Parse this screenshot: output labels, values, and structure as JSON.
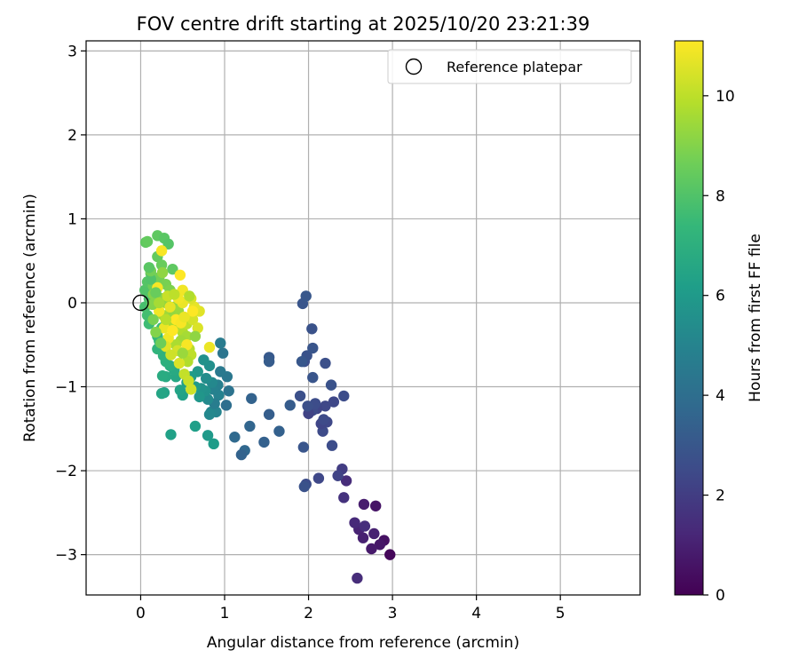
{
  "chart_data": {
    "type": "scatter",
    "title": "FOV centre drift starting at 2025/10/20 23:21:39",
    "xlabel": "Angular distance from reference (arcmin)",
    "ylabel": "Rotation from reference (arcmin)",
    "xlim": [
      -0.65,
      5.95
    ],
    "ylim": [
      -3.48,
      3.12
    ],
    "xticks": [
      0,
      1,
      2,
      3,
      4,
      5
    ],
    "xtick_labels": [
      "0",
      "1",
      "2",
      "3",
      "4",
      "5"
    ],
    "yticks": [
      3,
      2,
      1,
      0,
      -1,
      -2,
      -3
    ],
    "ytick_labels": [
      "3",
      "2",
      "1",
      "0",
      "−1",
      "−2",
      "−3"
    ],
    "grid": true,
    "legend": {
      "position": "top-right",
      "label": "Reference platepar"
    },
    "reference_point": {
      "x": 0,
      "y": 0,
      "marker": "open-circle"
    },
    "colorbar": {
      "label": "Hours from first FF file",
      "range": [
        0,
        11.1
      ],
      "ticks": [
        0,
        2,
        4,
        6,
        8,
        10
      ],
      "tick_labels": [
        "0",
        "2",
        "4",
        "6",
        "8",
        "10"
      ],
      "colormap": "viridis",
      "colors": [
        "#440154",
        "#482878",
        "#3e4a89",
        "#31688e",
        "#26828e",
        "#1f9e89",
        "#35b779",
        "#6ece58",
        "#b5de2b",
        "#fde725"
      ]
    },
    "series": [
      {
        "name": "FOV centre",
        "columns": [
          "x",
          "y",
          "hours"
        ],
        "points": [
          [
            2.97,
            -3.0,
            0.2
          ],
          [
            2.9,
            -2.83,
            0.5
          ],
          [
            2.85,
            -2.88,
            0.7
          ],
          [
            2.75,
            -2.93,
            0.8
          ],
          [
            2.8,
            -2.42,
            0.6
          ],
          [
            2.66,
            -2.4,
            0.9
          ],
          [
            2.78,
            -2.75,
            1.0
          ],
          [
            2.6,
            -2.7,
            1.1
          ],
          [
            2.65,
            -2.8,
            1.0
          ],
          [
            2.55,
            -2.62,
            1.3
          ],
          [
            2.58,
            -3.28,
            1.4
          ],
          [
            2.67,
            -2.66,
            1.5
          ],
          [
            2.45,
            -2.12,
            1.4
          ],
          [
            2.42,
            -2.32,
            1.6
          ],
          [
            2.4,
            -1.98,
            2.0
          ],
          [
            2.35,
            -2.06,
            2.2
          ],
          [
            2.12,
            -2.09,
            2.4
          ],
          [
            1.97,
            -2.16,
            2.6
          ],
          [
            1.95,
            -2.19,
            2.8
          ],
          [
            1.94,
            -1.72,
            2.9
          ],
          [
            2.28,
            -1.7,
            2.6
          ],
          [
            2.17,
            -1.53,
            2.5
          ],
          [
            2.22,
            -1.42,
            2.4
          ],
          [
            2.15,
            -1.44,
            2.3
          ],
          [
            2.18,
            -1.39,
            2.5
          ],
          [
            2.2,
            -1.23,
            2.4
          ],
          [
            2.1,
            -1.26,
            2.3
          ],
          [
            2.05,
            -1.28,
            2.5
          ],
          [
            2.0,
            -1.32,
            2.2
          ],
          [
            2.08,
            -1.2,
            2.6
          ],
          [
            1.99,
            -1.23,
            2.7
          ],
          [
            2.3,
            -1.18,
            2.4
          ],
          [
            2.42,
            -1.11,
            2.6
          ],
          [
            1.9,
            -1.11,
            2.7
          ],
          [
            2.27,
            -0.98,
            2.8
          ],
          [
            2.05,
            -0.89,
            2.9
          ],
          [
            2.2,
            -0.72,
            2.7
          ],
          [
            1.95,
            -0.7,
            2.6
          ],
          [
            1.98,
            -0.63,
            2.8
          ],
          [
            1.92,
            -0.7,
            3.0
          ],
          [
            2.05,
            -0.54,
            2.9
          ],
          [
            2.04,
            -0.31,
            2.8
          ],
          [
            1.93,
            -0.01,
            2.9
          ],
          [
            1.97,
            0.08,
            3.0
          ],
          [
            1.53,
            -0.65,
            3.1
          ],
          [
            1.53,
            -0.7,
            3.2
          ],
          [
            1.53,
            -1.33,
            3.3
          ],
          [
            1.65,
            -1.53,
            3.4
          ],
          [
            1.78,
            -1.22,
            3.2
          ],
          [
            1.32,
            -1.14,
            3.5
          ],
          [
            1.3,
            -1.47,
            3.6
          ],
          [
            1.47,
            -1.66,
            3.4
          ],
          [
            1.24,
            -1.76,
            3.7
          ],
          [
            1.2,
            -1.81,
            3.5
          ],
          [
            1.12,
            -1.6,
            3.8
          ],
          [
            1.02,
            -1.22,
            4.0
          ],
          [
            1.05,
            -1.05,
            4.2
          ],
          [
            1.03,
            -0.88,
            4.4
          ],
          [
            0.95,
            -0.82,
            4.5
          ],
          [
            0.98,
            -0.6,
            4.3
          ],
          [
            0.95,
            -0.48,
            4.6
          ],
          [
            0.92,
            -0.98,
            4.8
          ],
          [
            0.93,
            -1.1,
            4.9
          ],
          [
            0.9,
            -1.3,
            5.0
          ],
          [
            0.84,
            -1.3,
            5.1
          ],
          [
            0.82,
            -1.33,
            5.2
          ],
          [
            0.88,
            -1.2,
            4.7
          ],
          [
            0.86,
            -1.03,
            4.9
          ],
          [
            0.8,
            -1.15,
            5.3
          ],
          [
            0.85,
            -0.95,
            5.2
          ],
          [
            0.78,
            -0.9,
            5.4
          ],
          [
            0.82,
            -0.75,
            5.5
          ],
          [
            0.77,
            -1.05,
            5.6
          ],
          [
            0.72,
            -1.02,
            5.7
          ],
          [
            0.7,
            -1.12,
            5.8
          ],
          [
            0.75,
            -0.68,
            5.6
          ],
          [
            0.68,
            -0.82,
            5.9
          ],
          [
            0.65,
            -1.0,
            6.0
          ],
          [
            0.6,
            -0.88,
            6.1
          ],
          [
            0.55,
            -0.95,
            6.2
          ],
          [
            0.5,
            -1.1,
            6.3
          ],
          [
            0.47,
            -1.04,
            6.4
          ],
          [
            0.8,
            -1.58,
            6.0
          ],
          [
            0.87,
            -1.68,
            6.1
          ],
          [
            0.65,
            -1.47,
            6.2
          ],
          [
            0.36,
            -1.57,
            6.3
          ],
          [
            0.28,
            -1.07,
            6.4
          ],
          [
            0.25,
            -1.08,
            6.5
          ],
          [
            0.42,
            -0.88,
            6.6
          ],
          [
            0.3,
            -0.88,
            6.7
          ],
          [
            0.26,
            -0.87,
            6.8
          ],
          [
            0.4,
            -0.8,
            6.7
          ],
          [
            0.35,
            -0.75,
            6.9
          ],
          [
            0.3,
            -0.7,
            7.0
          ],
          [
            0.27,
            -0.63,
            7.1
          ],
          [
            0.2,
            -0.55,
            7.2
          ],
          [
            0.22,
            -0.45,
            7.3
          ],
          [
            0.2,
            -0.4,
            7.4
          ],
          [
            0.25,
            -0.3,
            7.5
          ],
          [
            0.1,
            -0.25,
            7.6
          ],
          [
            0.08,
            -0.15,
            7.7
          ],
          [
            0.05,
            -0.05,
            7.8
          ],
          [
            0.1,
            0.05,
            7.9
          ],
          [
            0.05,
            0.15,
            8.0
          ],
          [
            0.08,
            0.25,
            8.1
          ],
          [
            0.12,
            0.35,
            8.2
          ],
          [
            0.06,
            0.72,
            8.3
          ],
          [
            0.08,
            0.73,
            8.4
          ],
          [
            0.2,
            0.8,
            8.3
          ],
          [
            0.28,
            0.77,
            8.2
          ],
          [
            0.33,
            0.7,
            8.1
          ],
          [
            0.2,
            0.55,
            8.4
          ],
          [
            0.25,
            0.45,
            8.5
          ],
          [
            0.38,
            0.4,
            8.3
          ],
          [
            0.15,
            0.2,
            8.6
          ],
          [
            0.22,
            0.3,
            8.7
          ],
          [
            0.3,
            0.22,
            8.8
          ],
          [
            0.35,
            0.15,
            8.9
          ],
          [
            0.15,
            0.1,
            9.0
          ],
          [
            0.25,
            0.05,
            9.1
          ],
          [
            0.3,
            0.0,
            9.2
          ],
          [
            0.4,
            -0.05,
            9.3
          ],
          [
            0.45,
            -0.1,
            9.4
          ],
          [
            0.35,
            -0.12,
            9.3
          ],
          [
            0.27,
            -0.15,
            9.5
          ],
          [
            0.32,
            -0.25,
            9.6
          ],
          [
            0.4,
            -0.3,
            9.7
          ],
          [
            0.5,
            -0.35,
            9.8
          ],
          [
            0.55,
            -0.4,
            9.6
          ],
          [
            0.48,
            -0.45,
            9.5
          ],
          [
            0.42,
            -0.5,
            9.7
          ],
          [
            0.58,
            -0.55,
            9.9
          ],
          [
            0.6,
            -0.62,
            10.0
          ],
          [
            0.56,
            -0.7,
            9.8
          ],
          [
            0.52,
            -0.85,
            10.1
          ],
          [
            0.57,
            -0.93,
            10.2
          ],
          [
            0.6,
            -1.03,
            10.3
          ],
          [
            0.55,
            -0.25,
            10.0
          ],
          [
            0.62,
            -0.2,
            10.4
          ],
          [
            0.68,
            -0.3,
            10.5
          ],
          [
            0.7,
            -0.1,
            10.6
          ],
          [
            0.64,
            -0.05,
            10.7
          ],
          [
            0.6,
            0.05,
            10.5
          ],
          [
            0.5,
            0.0,
            10.8
          ],
          [
            0.45,
            0.05,
            10.9
          ],
          [
            0.35,
            -0.05,
            10.7
          ],
          [
            0.28,
            -0.3,
            10.8
          ],
          [
            0.22,
            -0.1,
            10.9
          ],
          [
            0.2,
            0.18,
            11.0
          ],
          [
            0.25,
            0.62,
            11.0
          ],
          [
            0.47,
            0.33,
            11.1
          ],
          [
            0.5,
            0.15,
            10.9
          ],
          [
            0.42,
            -0.2,
            11.1
          ],
          [
            0.55,
            -0.5,
            11.0
          ],
          [
            0.62,
            -0.1,
            11.1
          ],
          [
            0.33,
            -0.42,
            10.9
          ],
          [
            0.38,
            -0.33,
            11.1
          ],
          [
            0.48,
            -0.24,
            11.0
          ],
          [
            0.52,
            -0.17,
            10.8
          ],
          [
            0.3,
            -0.52,
            10.6
          ],
          [
            0.44,
            -0.57,
            10.4
          ],
          [
            0.82,
            -0.53,
            10.8
          ],
          [
            0.12,
            0.28,
            8.0
          ],
          [
            0.18,
            0.12,
            8.5
          ],
          [
            0.14,
            -0.02,
            9.0
          ],
          [
            0.26,
            0.36,
            9.2
          ],
          [
            0.22,
            0.0,
            9.6
          ],
          [
            0.32,
            0.08,
            10.2
          ],
          [
            0.4,
            0.1,
            10.0
          ],
          [
            0.58,
            0.08,
            9.8
          ],
          [
            0.3,
            -0.2,
            9.9
          ],
          [
            0.36,
            -0.62,
            10.3
          ],
          [
            0.46,
            -0.72,
            10.5
          ],
          [
            0.5,
            -0.6,
            9.4
          ],
          [
            0.65,
            -0.4,
            9.2
          ],
          [
            0.18,
            -0.35,
            9.0
          ],
          [
            0.15,
            -0.2,
            8.8
          ],
          [
            0.24,
            -0.48,
            8.6
          ],
          [
            0.12,
            0.38,
            8.7
          ],
          [
            0.1,
            0.42,
            8.2
          ]
        ]
      }
    ]
  }
}
